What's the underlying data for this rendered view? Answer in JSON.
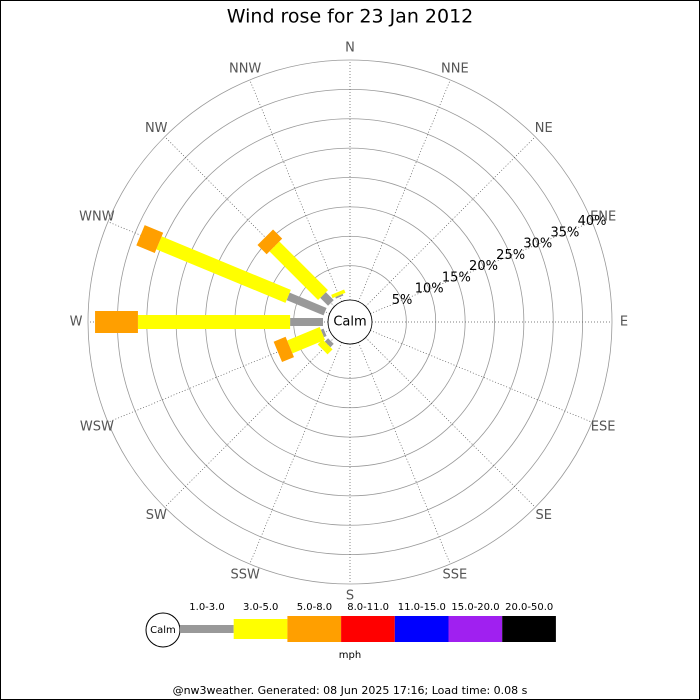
{
  "chart_data": {
    "type": "windrose",
    "title": "Wind rose for 23 Jan 2012",
    "categories": [
      "N",
      "NNE",
      "NE",
      "ENE",
      "E",
      "ESE",
      "SE",
      "SSE",
      "S",
      "SSW",
      "SW",
      "WSW",
      "W",
      "WNW",
      "NW",
      "NNW"
    ],
    "calm_label": "Calm",
    "rlim": [
      0,
      40
    ],
    "rticks": [
      {
        "value": 5,
        "label": "5%"
      },
      {
        "value": 10,
        "label": "10%"
      },
      {
        "value": 15,
        "label": "15%"
      },
      {
        "value": 20,
        "label": "20%"
      },
      {
        "value": 25,
        "label": "25%"
      },
      {
        "value": 30,
        "label": "30%"
      },
      {
        "value": 35,
        "label": "35%"
      },
      {
        "value": 40,
        "label": "40%"
      }
    ],
    "series": [
      {
        "name": "1.0-3.0",
        "color": "#999999",
        "values": [
          0,
          0,
          0,
          0,
          0,
          0,
          0,
          0,
          0,
          0,
          0.8,
          0.5,
          5.6,
          6.8,
          1.9,
          0.3
        ]
      },
      {
        "name": "3.0-5.0",
        "color": "#ffff00",
        "values": [
          0,
          0,
          0,
          0,
          0,
          0,
          0,
          0,
          0,
          0,
          1.2,
          6.0,
          25.9,
          23.8,
          11.7,
          0.6
        ]
      },
      {
        "name": "5.0-8.0",
        "color": "#ff9f00",
        "values": [
          0,
          0,
          0,
          0,
          0,
          0,
          0,
          0,
          0,
          0,
          0,
          2.2,
          7.3,
          3.4,
          2.2,
          0
        ]
      },
      {
        "name": "8.0-11.0",
        "color": "#ff0000",
        "values": [
          0,
          0,
          0,
          0,
          0,
          0,
          0,
          0,
          0,
          0,
          0,
          0,
          0,
          0,
          0,
          0
        ]
      },
      {
        "name": "11.0-15.0",
        "color": "#0000ff",
        "values": [
          0,
          0,
          0,
          0,
          0,
          0,
          0,
          0,
          0,
          0,
          0,
          0,
          0,
          0,
          0,
          0
        ]
      },
      {
        "name": "15.0-20.0",
        "color": "#a020f0",
        "values": [
          0,
          0,
          0,
          0,
          0,
          0,
          0,
          0,
          0,
          0,
          0,
          0,
          0,
          0,
          0,
          0
        ]
      },
      {
        "name": "20.0-50.0",
        "color": "#000000",
        "values": [
          0,
          0,
          0,
          0,
          0,
          0,
          0,
          0,
          0,
          0,
          0,
          0,
          0,
          0,
          0,
          0
        ]
      }
    ],
    "legend_unit": "mph",
    "footer": "@nw3weather. Generated: 08 Jun 2025 17:16; Load time: 0.08 s"
  }
}
